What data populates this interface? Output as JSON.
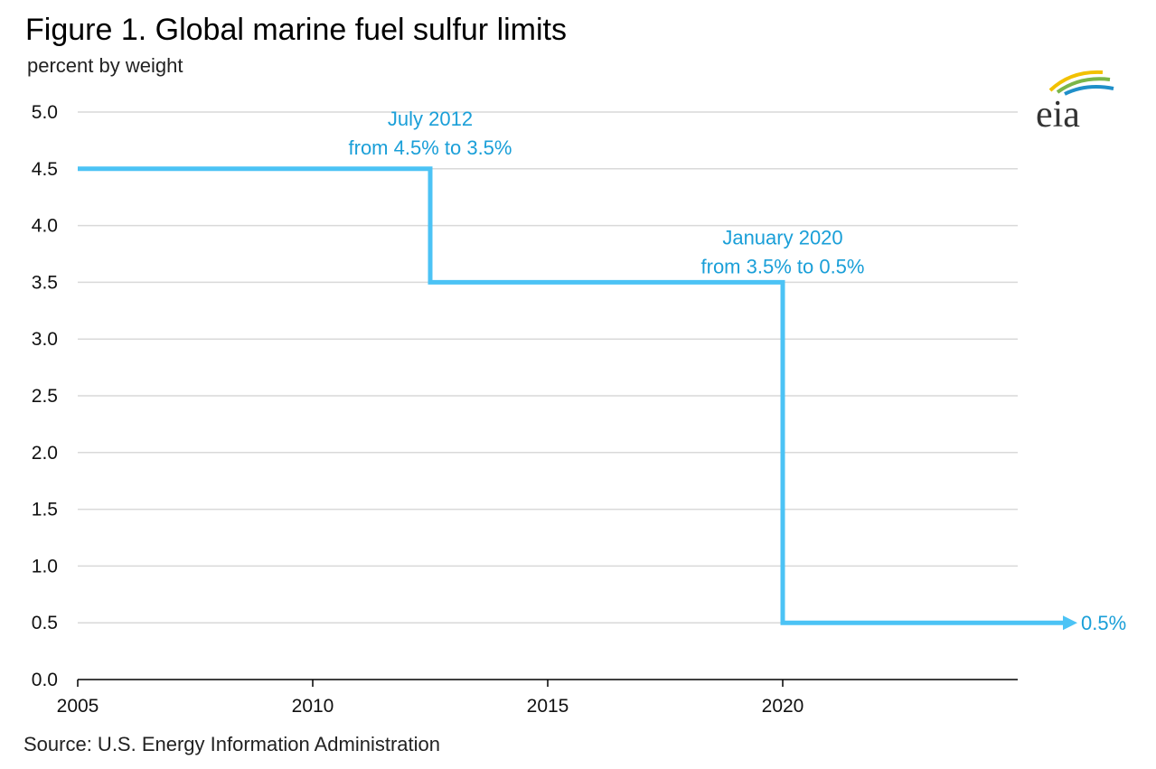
{
  "header": {
    "title": "Figure 1. Global marine fuel sulfur limits",
    "subtitle": "percent by weight"
  },
  "footer": {
    "source": "Source: U.S. Energy Information Administration"
  },
  "logo": {
    "text": "eia",
    "icon": "eia-logo"
  },
  "colors": {
    "series": "#4cc3f5",
    "annotation": "#1a9fd8",
    "grid": "#d9d9d9",
    "axis": "#000000"
  },
  "chart_data": {
    "type": "line",
    "step": true,
    "title": "Figure 1. Global marine fuel sulfur limits",
    "ylabel": "percent by weight",
    "xlabel": "",
    "xlim": [
      2005,
      2025
    ],
    "ylim": [
      0,
      5
    ],
    "x_ticks": [
      2005,
      2010,
      2015,
      2020
    ],
    "y_ticks": [
      "0.0",
      "0.5",
      "1.0",
      "1.5",
      "2.0",
      "2.5",
      "3.0",
      "3.5",
      "4.0",
      "4.5",
      "5.0"
    ],
    "grid": true,
    "series": [
      {
        "points": [
          {
            "x": 2005,
            "y": 4.5
          },
          {
            "x": 2012.5,
            "y": 4.5
          },
          {
            "x": 2012.5,
            "y": 3.5
          },
          {
            "x": 2020,
            "y": 3.5
          },
          {
            "x": 2020,
            "y": 0.5
          },
          {
            "x": 2026,
            "y": 0.5
          }
        ]
      }
    ],
    "annotations": [
      {
        "lines": [
          "July 2012",
          "from 4.5% to 3.5%"
        ],
        "x": 2012.5,
        "y": 4.5
      },
      {
        "lines": [
          "January 2020",
          "from 3.5% to 0.5%"
        ],
        "x": 2020,
        "y": 3.5
      },
      {
        "lines": [
          "0.5%"
        ],
        "x": 2026,
        "y": 0.5
      }
    ]
  }
}
